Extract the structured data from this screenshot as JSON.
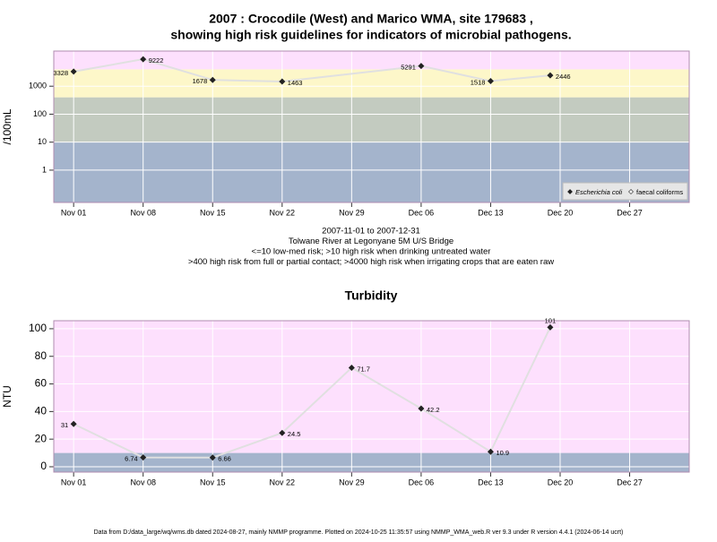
{
  "chart_data": [
    {
      "type": "line",
      "log_y": true,
      "title": [
        "2007 : Crocodile (West) and Marico WMA, site 179683 ,",
        "showing high risk guidelines for indicators of microbial pathogens."
      ],
      "subtitle": [
        "2007-11-01 to 2007-12-31",
        "Tolwane River at Legonyane 5M U/S Bridge",
        "<=10 low-med risk; >10 high risk when drinking untreated water",
        ">400 high risk from full or partial contact; >4000 high risk when irrigating crops that are eaten raw"
      ],
      "ylabel": "/100mL",
      "x": [
        "2007-11-01",
        "2007-11-08",
        "2007-11-15",
        "2007-11-22",
        "2007-12-06",
        "2007-12-13",
        "2007-12-19"
      ],
      "series": [
        {
          "name": "Escherichia coli",
          "color": "#222222",
          "values": [
            3328,
            9222,
            1678,
            1463,
            5291,
            1518,
            2446
          ]
        }
      ],
      "legend": [
        "Escherichia coli",
        "faecal coliforms"
      ],
      "legend_corner": "bottom-right",
      "xlim": [
        "2007-10-30",
        "2008-01-02"
      ],
      "xticks": [
        {
          "value": "2007-11-01",
          "label": "Nov 01"
        },
        {
          "value": "2007-11-08",
          "label": "Nov 08"
        },
        {
          "value": "2007-11-15",
          "label": "Nov 15"
        },
        {
          "value": "2007-11-22",
          "label": "Nov 22"
        },
        {
          "value": "2007-11-29",
          "label": "Nov 29"
        },
        {
          "value": "2007-12-06",
          "label": "Dec 06"
        },
        {
          "value": "2007-12-13",
          "label": "Dec 13"
        },
        {
          "value": "2007-12-20",
          "label": "Dec 20"
        },
        {
          "value": "2007-12-27",
          "label": "Dec 27"
        }
      ],
      "ylim": [
        0.07,
        18000
      ],
      "yticks": [
        1,
        10,
        100,
        1000
      ],
      "grid": true,
      "thresholds": [
        10,
        400,
        4000
      ],
      "band_colors": [
        "#a4b4cc",
        "#c3cbc0",
        "#fdf7c9",
        "#fde0fd"
      ]
    },
    {
      "type": "line",
      "log_y": false,
      "title": [
        "Turbidity"
      ],
      "ylabel": "NTU",
      "x": [
        "2007-11-01",
        "2007-11-08",
        "2007-11-15",
        "2007-11-22",
        "2007-11-29",
        "2007-12-06",
        "2007-12-13",
        "2007-12-19"
      ],
      "series": [
        {
          "name": "Turbidity",
          "color": "#222222",
          "values": [
            31,
            6.74,
            6.66,
            24.5,
            71.7,
            42.2,
            10.9,
            101
          ]
        }
      ],
      "xlim": [
        "2007-10-30",
        "2008-01-02"
      ],
      "xticks": [
        {
          "value": "2007-11-01",
          "label": "Nov 01"
        },
        {
          "value": "2007-11-08",
          "label": "Nov 08"
        },
        {
          "value": "2007-11-15",
          "label": "Nov 15"
        },
        {
          "value": "2007-11-22",
          "label": "Nov 22"
        },
        {
          "value": "2007-11-29",
          "label": "Nov 29"
        },
        {
          "value": "2007-12-06",
          "label": "Dec 06"
        },
        {
          "value": "2007-12-13",
          "label": "Dec 13"
        },
        {
          "value": "2007-12-20",
          "label": "Dec 20"
        },
        {
          "value": "2007-12-27",
          "label": "Dec 27"
        }
      ],
      "ylim": [
        -3.9,
        105.8
      ],
      "yticks": [
        0,
        20,
        40,
        60,
        80,
        100
      ],
      "grid": true,
      "thresholds": [
        10
      ],
      "band_colors": [
        "#a4b4cc",
        "#fde0fd"
      ]
    }
  ],
  "footer": "Data from D:/data_large/wq/wms.db dated 2024-08-27, mainly NMMP programme. Plotted on 2024-10-25 11:35:57 using NMMP_WMA_web.R ver 9.3 under R version 4.4.1 (2024-06-14 ucrt)"
}
